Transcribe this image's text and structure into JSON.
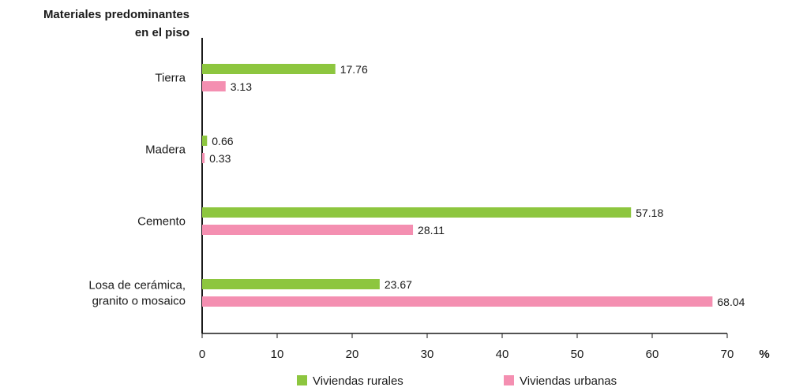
{
  "chart_data": {
    "type": "bar",
    "orientation": "horizontal",
    "title": "Materiales predominantes en el piso",
    "title_lines": [
      "Materiales predominantes",
      "en el piso"
    ],
    "unit_label": "%",
    "categories": [
      [
        "Tierra"
      ],
      [
        "Madera"
      ],
      [
        "Cemento"
      ],
      [
        "Losa de cerámica,",
        "granito o mosaico"
      ]
    ],
    "series": [
      {
        "name": "Viviendas rurales",
        "color": "#8dc63f",
        "values": [
          17.76,
          0.66,
          57.18,
          23.67
        ]
      },
      {
        "name": "Viviendas urbanas",
        "color": "#f48fb1",
        "values": [
          3.13,
          0.33,
          28.11,
          68.04
        ]
      }
    ],
    "value_labels": [
      [
        "17.76",
        "0.66",
        "57.18",
        "23.67"
      ],
      [
        "3.13",
        "0.33",
        "28.11",
        "68.04"
      ]
    ],
    "xlim": [
      0,
      70
    ],
    "xticks": [
      "0",
      "10",
      "20",
      "30",
      "40",
      "50",
      "60",
      "70"
    ],
    "grid": false,
    "legend_position": "bottom"
  }
}
